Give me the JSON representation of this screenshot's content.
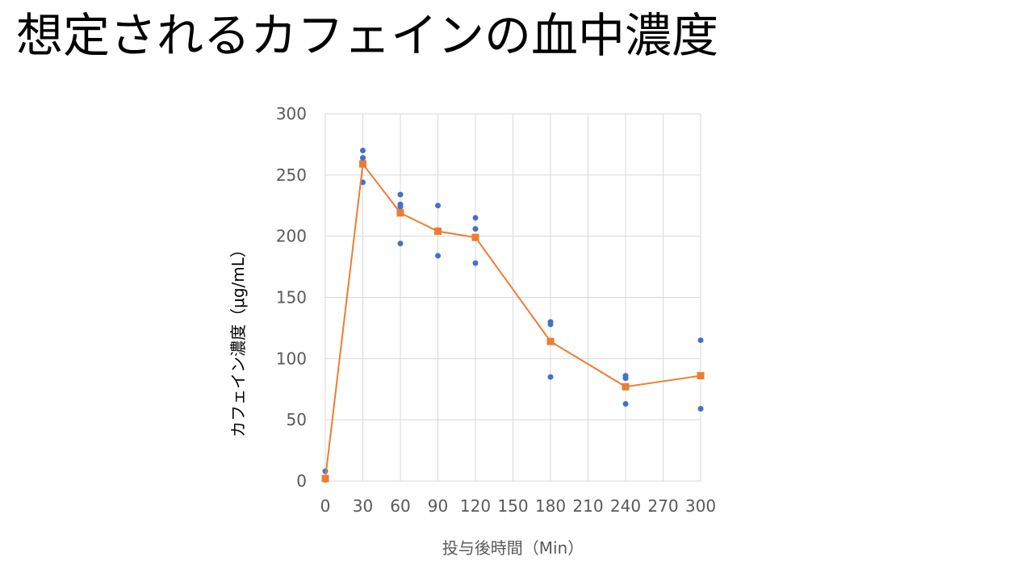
{
  "slide": {
    "title": "想定されるカフェインの血中濃度"
  },
  "chart_data": {
    "type": "scatter",
    "title": "",
    "xlabel": "投与後時間（Min）",
    "ylabel": "カフェイン濃度（μg/mL）",
    "xlim": [
      0,
      300
    ],
    "ylim": [
      0,
      300
    ],
    "x_ticks": [
      0,
      30,
      60,
      90,
      120,
      150,
      180,
      210,
      240,
      270,
      300
    ],
    "y_ticks": [
      0,
      50,
      100,
      150,
      200,
      250,
      300
    ],
    "grid": true,
    "legend": "none",
    "series": [
      {
        "kind": "points",
        "color": "#4472C4",
        "points": [
          [
            0,
            8
          ],
          [
            0,
            2
          ],
          [
            0,
            1
          ],
          [
            30,
            270
          ],
          [
            30,
            264
          ],
          [
            30,
            261
          ],
          [
            30,
            244
          ],
          [
            60,
            234
          ],
          [
            60,
            226
          ],
          [
            60,
            224
          ],
          [
            60,
            194
          ],
          [
            90,
            225
          ],
          [
            90,
            205
          ],
          [
            90,
            184
          ],
          [
            120,
            215
          ],
          [
            120,
            206
          ],
          [
            120,
            178
          ],
          [
            180,
            130
          ],
          [
            180,
            128
          ],
          [
            180,
            85
          ],
          [
            240,
            86
          ],
          [
            240,
            84
          ],
          [
            240,
            63
          ],
          [
            300,
            115
          ],
          [
            300,
            59
          ]
        ]
      },
      {
        "kind": "mean-line",
        "color": "#ED7D31",
        "x": [
          0,
          30,
          60,
          90,
          120,
          180,
          240,
          300
        ],
        "values": [
          2,
          259,
          219,
          204,
          199,
          114,
          77,
          86
        ]
      }
    ]
  }
}
